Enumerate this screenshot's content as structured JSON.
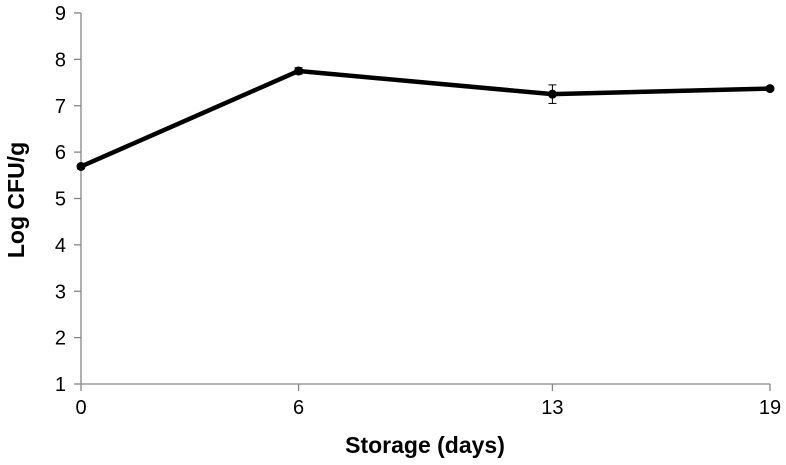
{
  "chart_data": {
    "type": "line",
    "title": "",
    "xlabel": "Storage (days)",
    "ylabel": "Log CFU/g",
    "x": [
      0,
      6,
      13,
      19
    ],
    "x_tick_labels": [
      "0",
      "6",
      "13",
      "19"
    ],
    "y_ticks": [
      1,
      2,
      3,
      4,
      5,
      6,
      7,
      8,
      9
    ],
    "ylim": [
      1,
      9
    ],
    "xlim": [
      0,
      19
    ],
    "grid": false,
    "legend": "none",
    "series": [
      {
        "values": [
          5.69,
          7.75,
          7.25,
          7.37
        ],
        "errors": [
          0.05,
          0.07,
          0.2,
          0.03
        ],
        "color": "#000000",
        "marker": "circle"
      }
    ]
  }
}
